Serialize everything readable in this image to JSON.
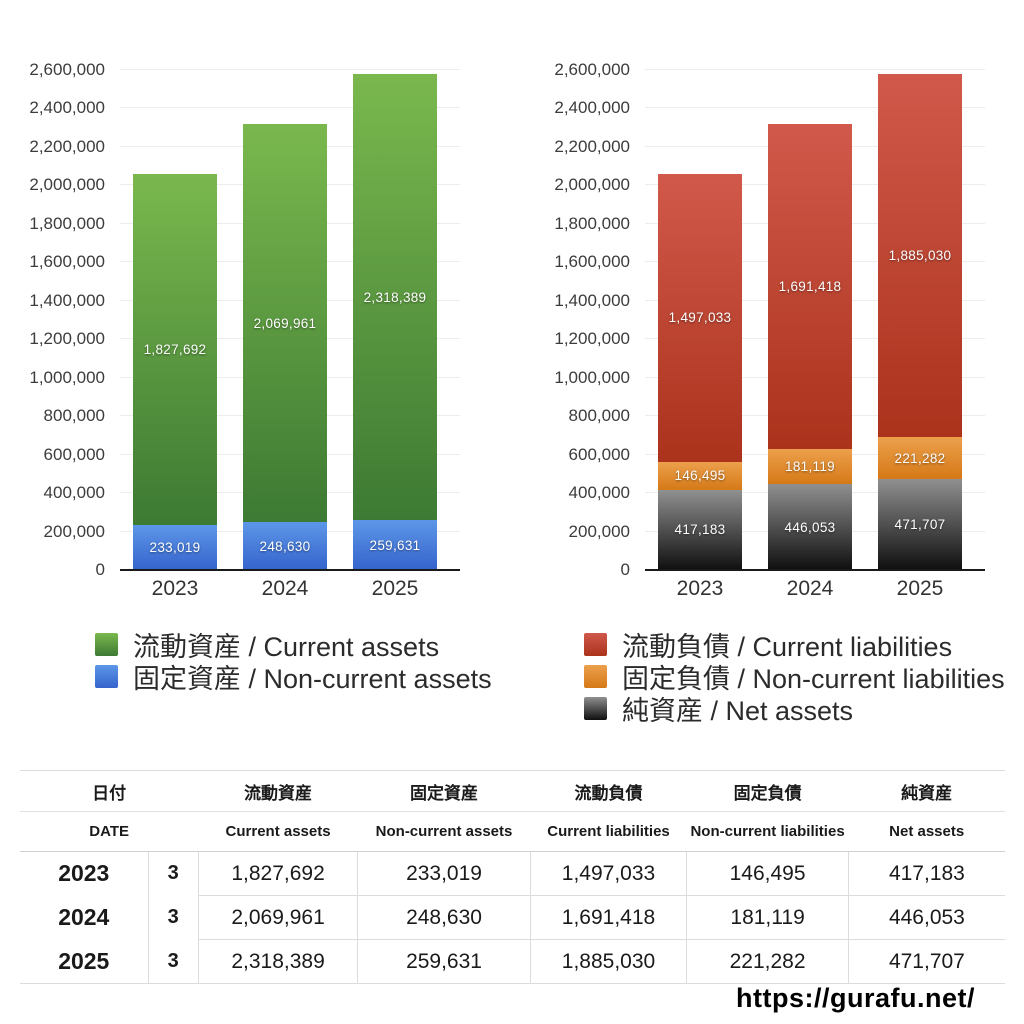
{
  "page": {
    "background": "#ffffff",
    "footer_url": "https://gurafu.net/"
  },
  "chart_data": [
    {
      "type": "bar",
      "stacked": true,
      "title": "",
      "categories": [
        "2023",
        "2024",
        "2025"
      ],
      "series": [
        {
          "name": "流動資産 / Current assets",
          "values": [
            1827692,
            2069961,
            2318389
          ],
          "color_top": "#7ab84e",
          "color_bottom": "#3d7a33"
        },
        {
          "name": "固定資産 / Non-current assets",
          "values": [
            233019,
            248630,
            259631
          ],
          "color_top": "#5d97e8",
          "color_bottom": "#3563cc"
        }
      ],
      "stack_bottom_to_top": [
        1,
        0
      ],
      "ylim": [
        0,
        2600000
      ],
      "ytick_step": 200000,
      "grid": true,
      "legend_position": "bottom"
    },
    {
      "type": "bar",
      "stacked": true,
      "title": "",
      "categories": [
        "2023",
        "2024",
        "2025"
      ],
      "series": [
        {
          "name": "流動負債 / Current liabilities",
          "values": [
            1497033,
            1691418,
            1885030
          ],
          "color_top": "#d0594b",
          "color_bottom": "#ab331c"
        },
        {
          "name": "固定負債 / Non-current liabilities",
          "values": [
            146495,
            181119,
            221282
          ],
          "color_top": "#eca04c",
          "color_bottom": "#d57917"
        },
        {
          "name": "純資産 / Net assets",
          "values": [
            417183,
            446053,
            471707
          ],
          "color_top": "#909090",
          "color_bottom": "#0f0f0f"
        }
      ],
      "stack_bottom_to_top": [
        2,
        1,
        0
      ],
      "ylim": [
        0,
        2600000
      ],
      "ytick_step": 200000,
      "grid": true,
      "legend_position": "bottom"
    }
  ],
  "table": {
    "header_jp": [
      "日付",
      "流動資産",
      "固定資産",
      "流動負債",
      "固定負債",
      "純資産"
    ],
    "header_en": [
      "DATE",
      "Current assets",
      "Non-current assets",
      "Current liabilities",
      "Non-current liabilities",
      "Net assets"
    ],
    "rows": [
      {
        "year": "2023",
        "month": "3",
        "values": [
          "1,827,692",
          "233,019",
          "1,497,033",
          "146,495",
          "417,183"
        ]
      },
      {
        "year": "2024",
        "month": "3",
        "values": [
          "2,069,961",
          "248,630",
          "1,691,418",
          "181,119",
          "446,053"
        ]
      },
      {
        "year": "2025",
        "month": "3",
        "values": [
          "2,318,389",
          "259,631",
          "1,885,030",
          "221,282",
          "471,707"
        ]
      }
    ]
  }
}
